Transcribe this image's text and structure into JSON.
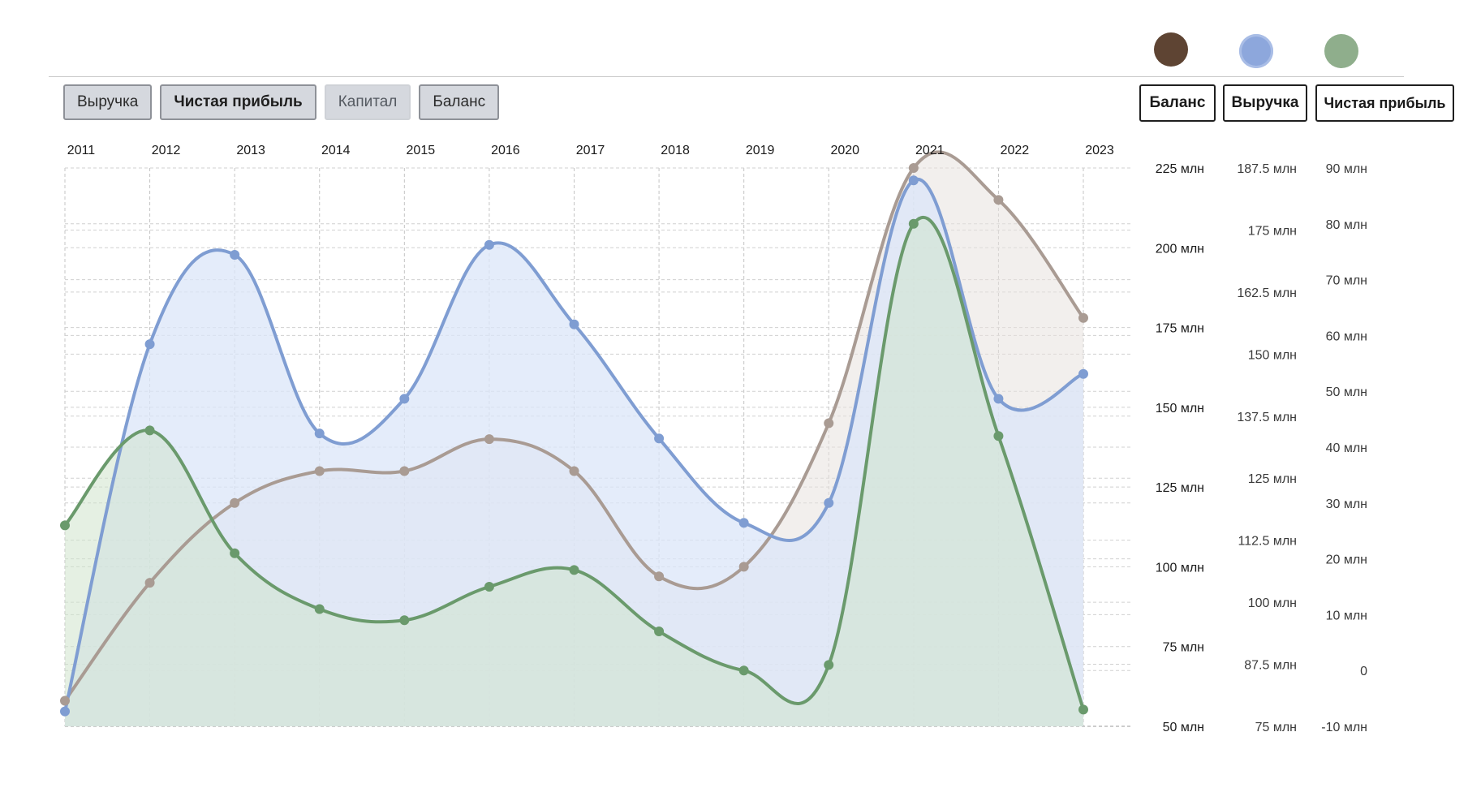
{
  "tabs": [
    {
      "label": "Выручка"
    },
    {
      "label": "Чистая прибыль"
    },
    {
      "label": "Капитал"
    },
    {
      "label": "Баланс"
    }
  ],
  "axis_buttons": {
    "balance": "Баланс",
    "revenue": "Выручка",
    "profit": "Чистая прибыль"
  },
  "colors": {
    "balance": "#a99b93",
    "balance_dot": "#5e4433",
    "revenue": "#7f9dd2",
    "revenue_dot": "#8da7dc",
    "profit": "#6a9a6c",
    "profit_dot": "#8fae8c",
    "revenue_fill": "#dbe6f8",
    "balance_fill": "#e8e2de",
    "profit_fill": "#cfe3cc"
  },
  "chart_data": {
    "type": "area",
    "x": [
      "2011",
      "2012",
      "2013",
      "2014",
      "2015",
      "2016",
      "2017",
      "2018",
      "2019",
      "2020",
      "2021",
      "2022",
      "2023"
    ],
    "series": [
      {
        "key": "balance",
        "name": "Баланс",
        "values": [
          58,
          95,
          120,
          130,
          130,
          140,
          130,
          97,
          100,
          145,
          225,
          215,
          178
        ],
        "ylim": [
          50,
          225
        ],
        "ticks": [
          "50 млн",
          "75 млн",
          "100 млн",
          "125 млн",
          "150 млн",
          "175 млн",
          "200 млн",
          "225 млн"
        ]
      },
      {
        "key": "revenue",
        "name": "Выручка",
        "values": [
          78,
          152,
          170,
          134,
          141,
          172,
          156,
          133,
          116,
          120,
          185,
          141,
          146
        ],
        "ylim": [
          75,
          187.5
        ],
        "ticks": [
          "75 млн",
          "87.5 млн",
          "100 млн",
          "112.5 млн",
          "125 млн",
          "137.5 млн",
          "150 млн",
          "162.5 млн",
          "175 млн",
          "187.5 млн"
        ]
      },
      {
        "key": "profit",
        "name": "Чистая прибыль",
        "values": [
          26,
          43,
          21,
          11,
          9,
          15,
          18,
          7,
          0,
          1,
          80,
          42,
          -7
        ],
        "ylim": [
          -10,
          90
        ],
        "ticks": [
          "-10 млн",
          "0",
          "10 млн",
          "20 млн",
          "30 млн",
          "40 млн",
          "50 млн",
          "60 млн",
          "70 млн",
          "80 млн",
          "90 млн"
        ]
      }
    ],
    "grid": true
  }
}
